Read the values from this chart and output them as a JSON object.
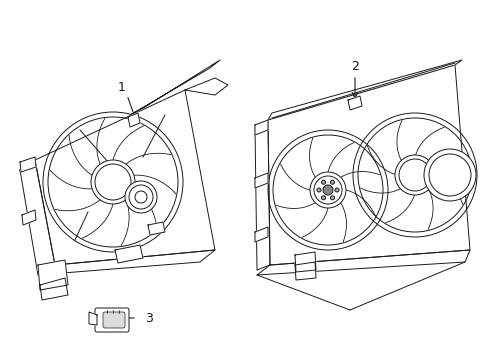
{
  "background_color": "#ffffff",
  "line_color": "#1a1a1a",
  "line_width": 0.7,
  "figsize": [
    4.89,
    3.6
  ],
  "dpi": 100
}
